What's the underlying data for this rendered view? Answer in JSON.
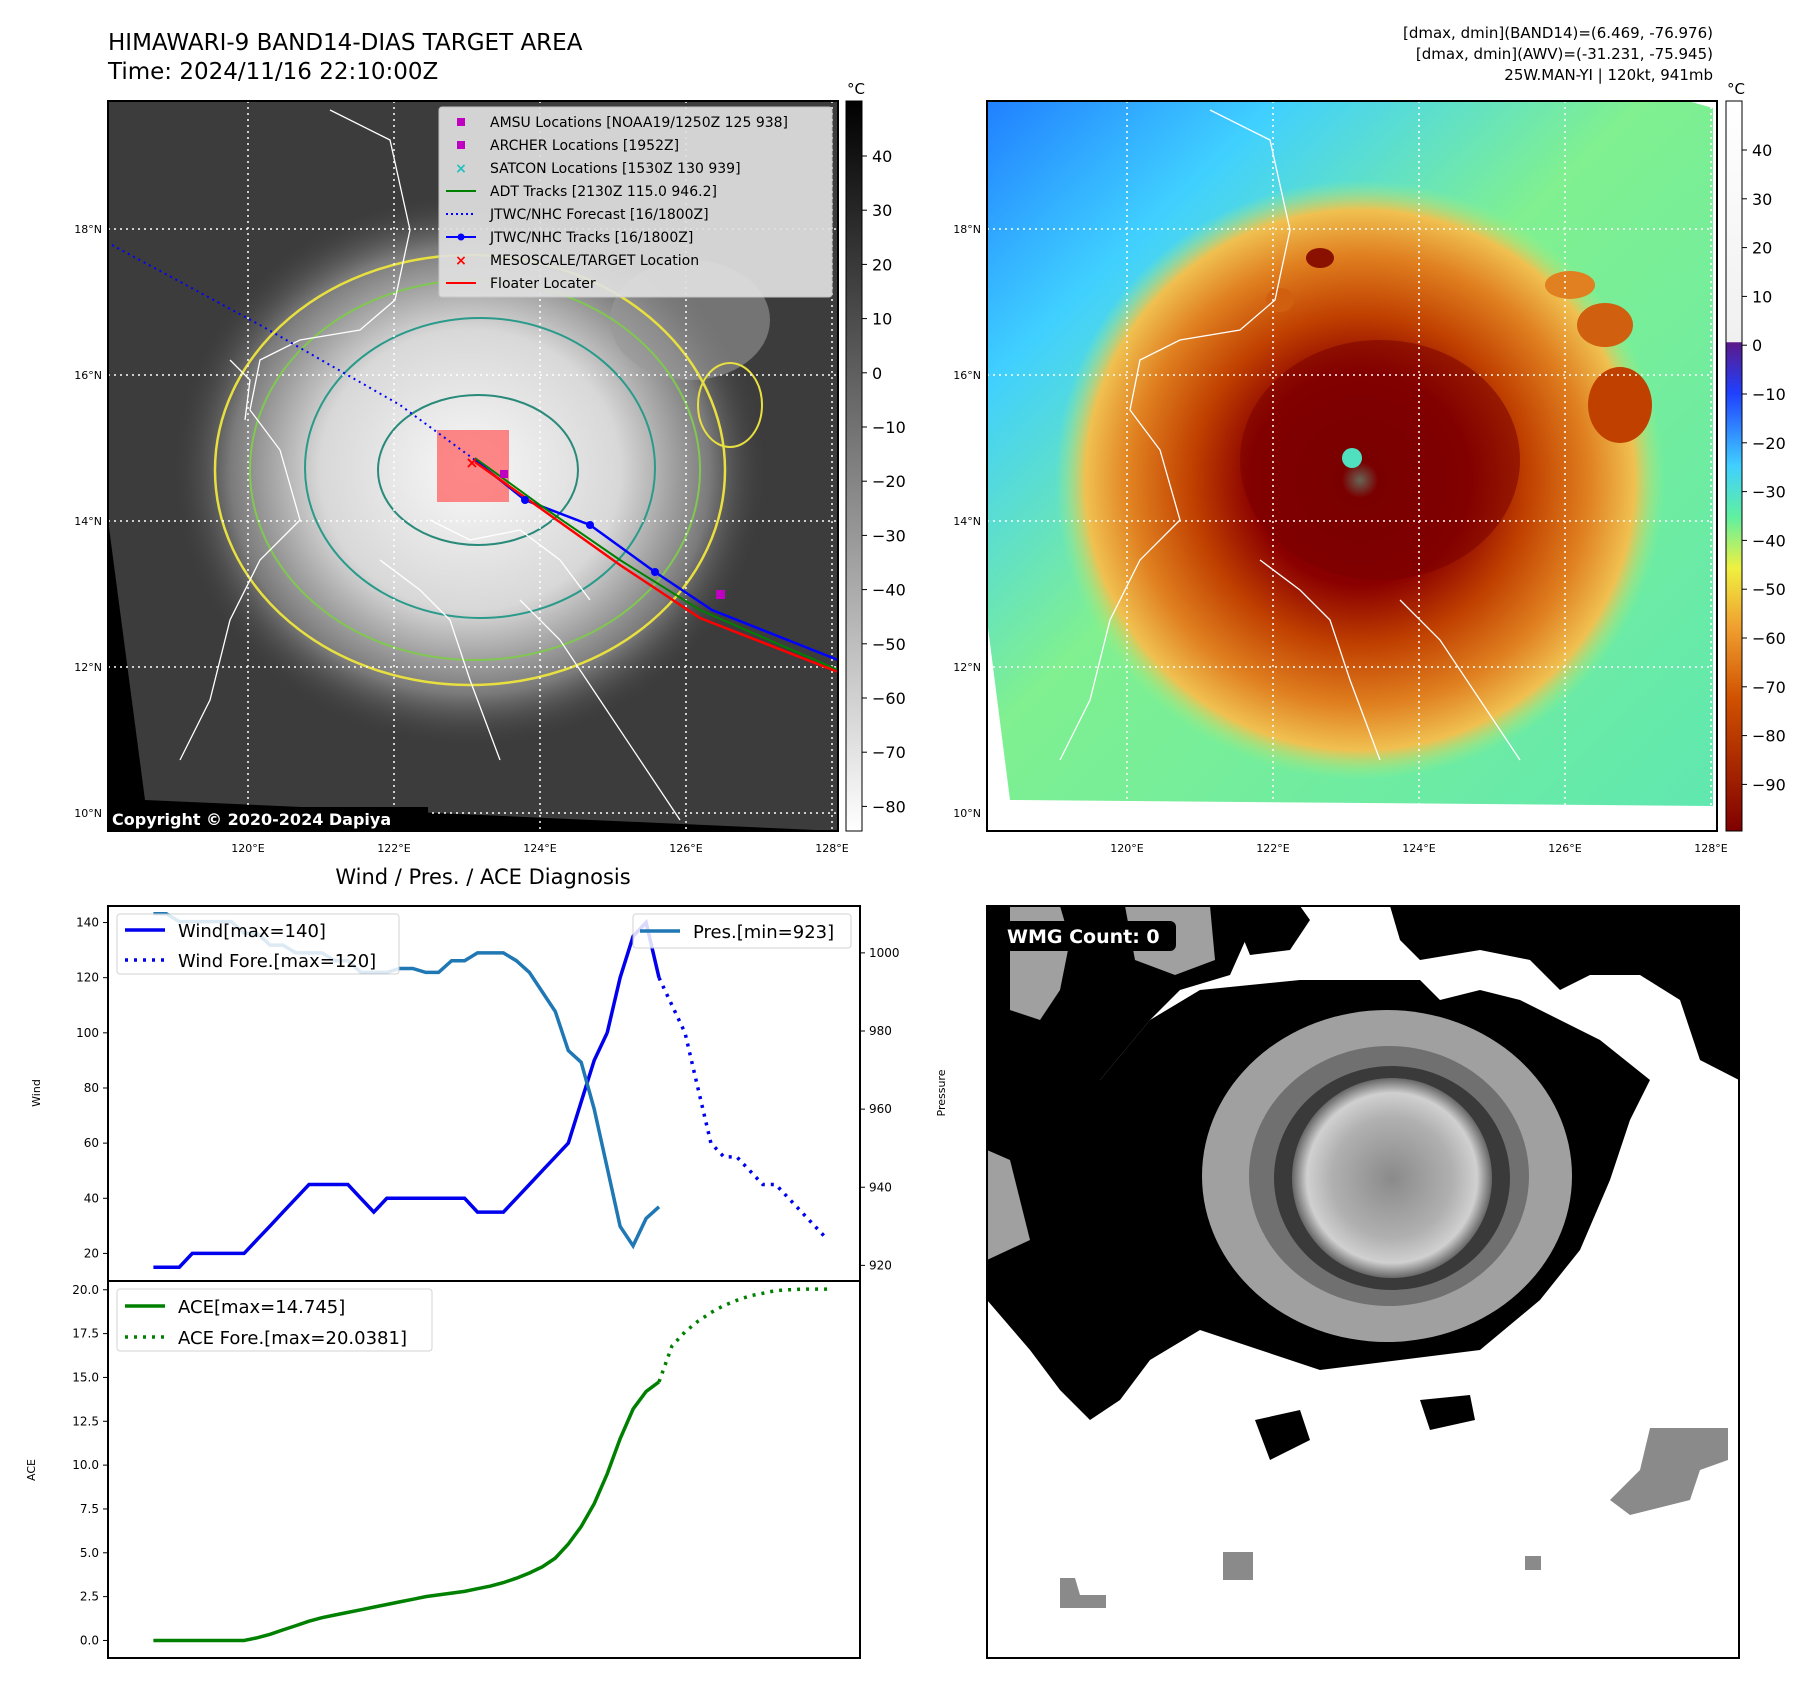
{
  "header": {
    "title_line1": "HIMAWARI-9 BAND14-DIAS TARGET AREA",
    "title_line2": "Time: 2024/11/16 22:10:00Z",
    "info_line1": "[dmax, dmin](BAND14)=(6.469, -76.976)",
    "info_line2": "[dmax, dmin](AWV)=(-31.231, -75.945)",
    "info_line3": "25W.MAN-YI | 120kt, 941mb"
  },
  "colors": {
    "wind": "#0000ee",
    "pressure": "#1f77b4",
    "ace": "#008000",
    "adt": "#008000",
    "track": "#0000ff",
    "floater": "#ff0000",
    "amsu": "#c000c0",
    "satcon": "#20c0c0"
  },
  "map": {
    "lat_labels": [
      "18°N",
      "16°N",
      "14°N",
      "12°N",
      "10°N"
    ],
    "lon_labels": [
      "120°E",
      "122°E",
      "124°E",
      "126°E",
      "128°E"
    ],
    "copyright": "Copyright © 2020-2024 Dapiya",
    "legend": [
      {
        "label": "AMSU Locations [NOAA19/1250Z 125 938]",
        "marker": "square",
        "color": "#c000c0"
      },
      {
        "label": "ARCHER Locations [1952Z]",
        "marker": "square",
        "color": "#c000c0"
      },
      {
        "label": "SATCON Locations [1530Z 130 939]",
        "marker": "x",
        "color": "#20c0c0"
      },
      {
        "label": "ADT Tracks [2130Z 115.0 946.2]",
        "marker": "line",
        "color": "#008000"
      },
      {
        "label": "JTWC/NHC Forecast [16/1800Z]",
        "marker": "dotted",
        "color": "#0000ff"
      },
      {
        "label": "JTWC/NHC Tracks [16/1800Z]",
        "marker": "line-dot",
        "color": "#0000ff"
      },
      {
        "label": "MESOSCALE/TARGET Location",
        "marker": "x",
        "color": "#ff0000"
      },
      {
        "label": "Floater Locater",
        "marker": "line",
        "color": "#ff0000"
      }
    ]
  },
  "colorbar1": {
    "unit": "°C",
    "ticks": [
      "40",
      "30",
      "20",
      "10",
      "0",
      "−10",
      "−20",
      "−30",
      "−40",
      "−50",
      "−60",
      "−70",
      "−80"
    ]
  },
  "colorbar2": {
    "unit": "°C",
    "ticks": [
      "40",
      "30",
      "20",
      "10",
      "0",
      "−10",
      "−20",
      "−30",
      "−40",
      "−50",
      "−60",
      "−70",
      "−80",
      "−90"
    ]
  },
  "wmg": {
    "label": "WMG Count: 0"
  },
  "chart_data": [
    {
      "type": "line",
      "title": "Wind / Pres. / ACE Diagnosis",
      "ylabel": "Wind",
      "ylim": [
        10,
        146
      ],
      "yticks": [
        20,
        40,
        60,
        80,
        100,
        120,
        140
      ],
      "y2label": "Pressure",
      "y2lim": [
        916,
        1012
      ],
      "y2ticks": [
        920,
        940,
        960,
        980,
        1000
      ],
      "series": [
        {
          "name": "Wind[max=140]",
          "axis": "left",
          "style": "solid",
          "x": [
            0,
            1,
            2,
            3,
            4,
            5,
            6,
            7,
            8,
            9,
            10,
            11,
            12,
            13,
            14,
            15,
            16,
            17,
            18,
            19,
            20,
            21,
            22,
            23,
            24,
            25,
            26,
            27,
            28,
            29,
            30,
            31,
            32,
            33,
            34,
            35
          ],
          "values": [
            15,
            15,
            15,
            20,
            20,
            20,
            20,
            20,
            25,
            30,
            35,
            40,
            45,
            45,
            45,
            45,
            40,
            35,
            40,
            40,
            40,
            40,
            40,
            40,
            40,
            35,
            35,
            35,
            40,
            45,
            50,
            55,
            60,
            75,
            90,
            100
          ]
        },
        {
          "name": "Wind[max=140] (cont.)",
          "axis": "left",
          "style": "solid",
          "x": [
            35,
            36,
            37,
            38,
            39
          ],
          "values": [
            100,
            120,
            135,
            140,
            120
          ]
        },
        {
          "name": "Wind Fore.[max=120]",
          "axis": "left",
          "style": "dotted",
          "x": [
            39,
            40,
            41,
            42,
            43,
            44,
            45,
            46,
            47,
            48,
            49,
            50,
            51,
            52
          ],
          "values": [
            120,
            110,
            100,
            80,
            60,
            55,
            55,
            50,
            45,
            45,
            40,
            35,
            30,
            25
          ]
        },
        {
          "name": "Pres.[min=923]",
          "axis": "right",
          "style": "solid",
          "x": [
            0,
            1,
            2,
            3,
            4,
            5,
            6,
            7,
            8,
            9,
            10,
            11,
            12,
            13,
            14,
            15,
            16,
            17,
            18,
            19,
            20,
            21,
            22,
            23,
            24,
            25,
            26,
            27,
            28,
            29,
            30,
            31,
            32,
            33,
            34,
            35,
            36,
            37,
            38,
            39
          ],
          "values": [
            1010,
            1010,
            1008,
            1008,
            1008,
            1008,
            1008,
            1005,
            1005,
            1002,
            1002,
            1000,
            1000,
            1000,
            998,
            998,
            995,
            995,
            995,
            996,
            996,
            995,
            995,
            998,
            998,
            1000,
            1000,
            1000,
            998,
            995,
            990,
            985,
            975,
            972,
            960,
            945,
            930,
            925,
            932,
            935
          ]
        }
      ]
    },
    {
      "type": "line",
      "ylabel": "ACE",
      "ylim": [
        -1,
        20.5
      ],
      "yticks": [
        "0.0",
        "2.5",
        "5.0",
        "7.5",
        "10.0",
        "12.5",
        "15.0",
        "17.5",
        "20.0"
      ],
      "series": [
        {
          "name": "ACE[max=14.745]",
          "style": "solid",
          "x": [
            0,
            1,
            2,
            3,
            4,
            5,
            6,
            7,
            8,
            9,
            10,
            11,
            12,
            13,
            14,
            15,
            16,
            17,
            18,
            19,
            20,
            21,
            22,
            23,
            24,
            25,
            26,
            27,
            28,
            29,
            30,
            31,
            32,
            33,
            34,
            35,
            36,
            37,
            38,
            39
          ],
          "values": [
            0,
            0,
            0,
            0,
            0,
            0,
            0,
            0,
            0.15,
            0.35,
            0.6,
            0.85,
            1.1,
            1.3,
            1.45,
            1.6,
            1.75,
            1.9,
            2.05,
            2.2,
            2.35,
            2.5,
            2.6,
            2.7,
            2.8,
            2.95,
            3.1,
            3.3,
            3.55,
            3.85,
            4.2,
            4.7,
            5.5,
            6.5,
            7.8,
            9.5,
            11.5,
            13.2,
            14.2,
            14.745
          ]
        },
        {
          "name": "ACE Fore.[max=20.0381]",
          "style": "dotted",
          "x": [
            39,
            40,
            41,
            42,
            43,
            44,
            45,
            46,
            47,
            48,
            49,
            50,
            51,
            52
          ],
          "values": [
            14.745,
            16.8,
            17.6,
            18.2,
            18.7,
            19.1,
            19.4,
            19.65,
            19.8,
            19.95,
            20.0,
            20.03,
            20.038,
            20.0381
          ]
        }
      ]
    }
  ]
}
